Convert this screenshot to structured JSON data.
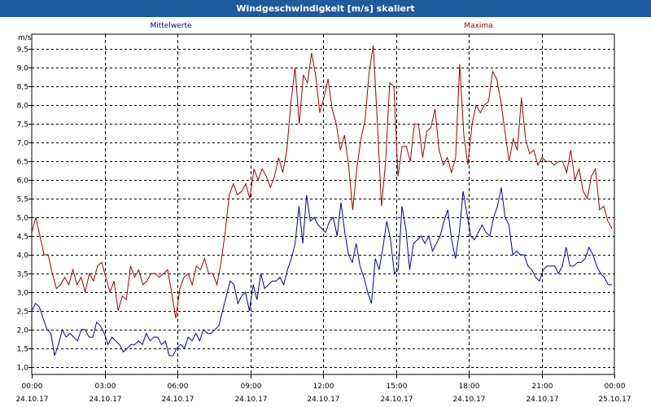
{
  "window": {
    "title": "Windgeschwindigkeit [m/s] skaliert"
  },
  "colors": {
    "titlebar": "#1f5a9e",
    "mean": "#0000a8",
    "max": "#a80000",
    "grid": "#000000"
  },
  "chart_data": {
    "type": "line",
    "title": "Windgeschwindigkeit [m/s] skaliert",
    "ylabel": "m/s",
    "ylim": [
      0.8,
      9.9
    ],
    "yticks": [
      1.0,
      1.5,
      2.0,
      2.5,
      3.0,
      3.5,
      4.0,
      4.5,
      5.0,
      5.5,
      6.0,
      6.5,
      7.0,
      7.5,
      8.0,
      8.5,
      9.0,
      9.5
    ],
    "ytick_labels": [
      "1,0",
      "1,5",
      "2,0",
      "2,5",
      "3,0",
      "3,5",
      "4,0",
      "4,5",
      "5,0",
      "5,5",
      "6,0",
      "6,5",
      "7,0",
      "7,5",
      "8,0",
      "8,5",
      "9,0",
      "9,5"
    ],
    "xlim": [
      0,
      24
    ],
    "xticks": [
      {
        "time": "00:00",
        "date": "24.10.17"
      },
      {
        "time": "03:00",
        "date": "24.10.17"
      },
      {
        "time": "06:00",
        "date": "24.10.17"
      },
      {
        "time": "09:00",
        "date": "24.10.17"
      },
      {
        "time": "12:00",
        "date": "24.10.17"
      },
      {
        "time": "15:00",
        "date": "24.10.17"
      },
      {
        "time": "18:00",
        "date": "24.10.17"
      },
      {
        "time": "21:00",
        "date": "24.10.17"
      },
      {
        "time": "00:00",
        "date": "25.10.17"
      }
    ],
    "grid": true,
    "series": [
      {
        "name": "Mittelwerte",
        "values": [
          2.5,
          2.7,
          2.6,
          2.3,
          2.0,
          1.9,
          1.3,
          1.6,
          2.0,
          1.8,
          1.9,
          1.8,
          1.7,
          2.0,
          2.0,
          1.8,
          1.8,
          2.2,
          2.1,
          1.9,
          1.6,
          1.8,
          1.7,
          1.6,
          1.4,
          1.5,
          1.6,
          1.6,
          1.7,
          1.6,
          1.9,
          1.7,
          1.8,
          1.8,
          1.6,
          1.7,
          1.3,
          1.3,
          1.5,
          1.6,
          1.5,
          1.8,
          1.7,
          1.9,
          1.7,
          2.0,
          1.9,
          1.9,
          2.0,
          2.1,
          2.5,
          2.9,
          3.3,
          3.2,
          2.7,
          2.9,
          3.0,
          2.5,
          3.2,
          2.8,
          3.5,
          3.1,
          3.2,
          3.3,
          3.3,
          3.4,
          3.2,
          3.6,
          3.9,
          4.3,
          5.3,
          4.3,
          5.6,
          4.9,
          5.0,
          4.8,
          4.7,
          4.6,
          4.9,
          5.0,
          4.5,
          5.4,
          4.6,
          4.0,
          3.8,
          4.3,
          3.7,
          3.4,
          3.0,
          2.7,
          3.9,
          3.6,
          4.2,
          4.9,
          4.4,
          3.5,
          3.6,
          5.3,
          4.7,
          3.6,
          4.3,
          4.4,
          4.5,
          4.3,
          4.5,
          4.1,
          4.3,
          4.5,
          4.9,
          5.2,
          4.4,
          3.9,
          4.6,
          5.7,
          5.1,
          4.5,
          4.4,
          4.6,
          4.8,
          4.6,
          4.5,
          5.0,
          5.3,
          5.8,
          5.0,
          4.8,
          4.0,
          4.1,
          4.0,
          4.0,
          3.7,
          3.6,
          3.4,
          3.3,
          3.6,
          3.7,
          3.7,
          3.7,
          3.5,
          3.7,
          4.2,
          3.7,
          3.7,
          3.8,
          3.8,
          3.9,
          4.2,
          4.0,
          3.7,
          3.5,
          3.4,
          3.2,
          3.2
        ],
        "x_start": 0,
        "x_end": 23.9,
        "color": "#0000a8"
      },
      {
        "name": "Maxima",
        "values": [
          4.6,
          5.0,
          4.5,
          4.0,
          4.0,
          3.5,
          3.1,
          3.2,
          3.4,
          3.2,
          3.6,
          3.2,
          3.4,
          3.0,
          3.5,
          3.3,
          3.7,
          3.8,
          3.4,
          3.0,
          3.3,
          2.5,
          2.9,
          2.8,
          3.7,
          3.4,
          3.6,
          3.2,
          3.3,
          3.5,
          3.5,
          3.4,
          3.5,
          3.6,
          3.0,
          2.3,
          3.1,
          3.4,
          3.5,
          3.2,
          3.7,
          3.6,
          3.9,
          3.5,
          3.5,
          3.2,
          3.8,
          4.6,
          5.6,
          5.9,
          5.6,
          5.7,
          5.9,
          5.5,
          6.3,
          6.0,
          6.3,
          6.1,
          5.8,
          6.1,
          6.6,
          6.2,
          6.8,
          8.1,
          9.0,
          7.5,
          8.8,
          8.6,
          9.4,
          8.8,
          7.8,
          8.2,
          8.7,
          7.9,
          7.5,
          6.8,
          7.2,
          6.4,
          5.2,
          6.3,
          7.1,
          7.6,
          8.9,
          9.6,
          7.5,
          5.3,
          6.5,
          8.6,
          8.5,
          6.1,
          6.9,
          6.9,
          6.5,
          7.5,
          7.5,
          6.6,
          7.3,
          7.4,
          7.9,
          6.8,
          6.4,
          6.6,
          6.2,
          6.6,
          9.1,
          7.2,
          6.4,
          7.5,
          8.0,
          7.8,
          8.0,
          8.1,
          8.9,
          8.7,
          8.1,
          7.3,
          6.5,
          7.1,
          6.8,
          8.2,
          7.1,
          6.7,
          6.8,
          6.4,
          6.6,
          6.5,
          6.5,
          6.4,
          6.5,
          6.5,
          6.2,
          6.8,
          6.0,
          6.3,
          5.7,
          5.5,
          6.1,
          6.3,
          5.2,
          5.3,
          4.9,
          4.7
        ],
        "x_start": 0,
        "x_end": 23.9,
        "color": "#a80000"
      }
    ]
  }
}
